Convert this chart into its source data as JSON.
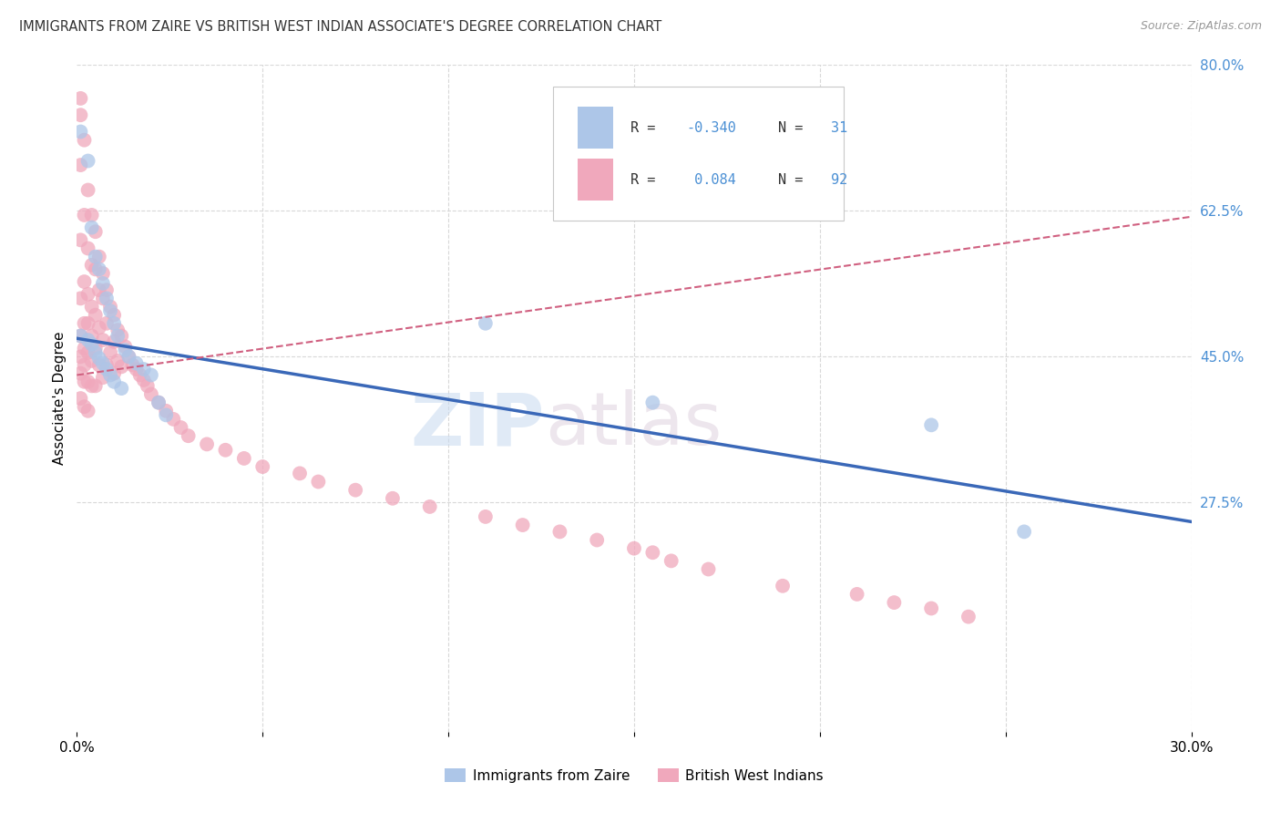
{
  "title": "IMMIGRANTS FROM ZAIRE VS BRITISH WEST INDIAN ASSOCIATE'S DEGREE CORRELATION CHART",
  "source": "Source: ZipAtlas.com",
  "ylabel": "Associate's Degree",
  "xlim": [
    0.0,
    0.3
  ],
  "ylim": [
    0.0,
    0.8
  ],
  "color_blue": "#adc6e8",
  "color_pink": "#f0a8bc",
  "line_blue": "#3a68b8",
  "line_pink": "#d06080",
  "background": "#ffffff",
  "grid_color": "#d8d8d8",
  "blue_line_x0": 0.0,
  "blue_line_y0": 0.472,
  "blue_line_x1": 0.3,
  "blue_line_y1": 0.252,
  "pink_line_x0": 0.0,
  "pink_line_y0": 0.428,
  "pink_line_x1": 0.3,
  "pink_line_y1": 0.618,
  "blue_points_x": [
    0.001,
    0.001,
    0.003,
    0.003,
    0.004,
    0.004,
    0.005,
    0.005,
    0.006,
    0.006,
    0.007,
    0.007,
    0.008,
    0.008,
    0.009,
    0.009,
    0.01,
    0.01,
    0.011,
    0.012,
    0.013,
    0.014,
    0.016,
    0.018,
    0.02,
    0.022,
    0.024,
    0.11,
    0.155,
    0.23,
    0.255
  ],
  "blue_points_y": [
    0.72,
    0.475,
    0.685,
    0.47,
    0.605,
    0.465,
    0.57,
    0.455,
    0.555,
    0.448,
    0.538,
    0.442,
    0.52,
    0.435,
    0.505,
    0.428,
    0.49,
    0.42,
    0.475,
    0.412,
    0.458,
    0.45,
    0.442,
    0.435,
    0.428,
    0.395,
    0.38,
    0.49,
    0.395,
    0.368,
    0.24
  ],
  "pink_points_x": [
    0.001,
    0.001,
    0.001,
    0.001,
    0.001,
    0.001,
    0.001,
    0.001,
    0.001,
    0.002,
    0.002,
    0.002,
    0.002,
    0.002,
    0.002,
    0.002,
    0.002,
    0.003,
    0.003,
    0.003,
    0.003,
    0.003,
    0.003,
    0.003,
    0.004,
    0.004,
    0.004,
    0.004,
    0.004,
    0.004,
    0.005,
    0.005,
    0.005,
    0.005,
    0.005,
    0.006,
    0.006,
    0.006,
    0.006,
    0.007,
    0.007,
    0.007,
    0.007,
    0.008,
    0.008,
    0.008,
    0.009,
    0.009,
    0.01,
    0.01,
    0.01,
    0.011,
    0.011,
    0.012,
    0.012,
    0.013,
    0.014,
    0.015,
    0.016,
    0.017,
    0.018,
    0.019,
    0.02,
    0.022,
    0.024,
    0.026,
    0.028,
    0.03,
    0.035,
    0.04,
    0.045,
    0.05,
    0.06,
    0.065,
    0.075,
    0.085,
    0.095,
    0.11,
    0.12,
    0.13,
    0.14,
    0.15,
    0.155,
    0.16,
    0.17,
    0.19,
    0.21,
    0.22,
    0.23,
    0.24
  ],
  "pink_points_y": [
    0.76,
    0.74,
    0.68,
    0.59,
    0.52,
    0.475,
    0.45,
    0.43,
    0.4,
    0.71,
    0.62,
    0.54,
    0.49,
    0.46,
    0.44,
    0.42,
    0.39,
    0.65,
    0.58,
    0.525,
    0.49,
    0.455,
    0.42,
    0.385,
    0.62,
    0.56,
    0.51,
    0.475,
    0.445,
    0.415,
    0.6,
    0.555,
    0.5,
    0.46,
    0.415,
    0.57,
    0.53,
    0.485,
    0.44,
    0.55,
    0.52,
    0.47,
    0.425,
    0.53,
    0.49,
    0.44,
    0.51,
    0.455,
    0.5,
    0.468,
    0.43,
    0.482,
    0.445,
    0.475,
    0.438,
    0.462,
    0.45,
    0.44,
    0.435,
    0.428,
    0.422,
    0.415,
    0.405,
    0.395,
    0.385,
    0.375,
    0.365,
    0.355,
    0.345,
    0.338,
    0.328,
    0.318,
    0.31,
    0.3,
    0.29,
    0.28,
    0.27,
    0.258,
    0.248,
    0.24,
    0.23,
    0.22,
    0.215,
    0.205,
    0.195,
    0.175,
    0.165,
    0.155,
    0.148,
    0.138
  ]
}
